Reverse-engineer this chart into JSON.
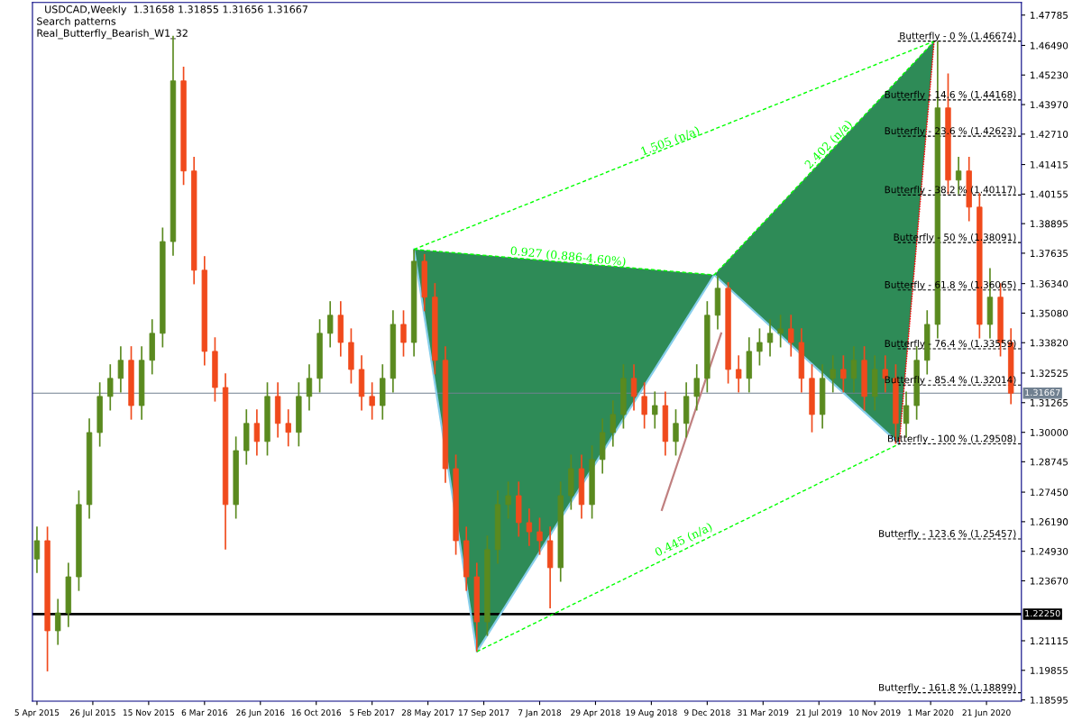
{
  "chart_data": {
    "type": "candlestick",
    "title": "USDCAD,Weekly  1.31658 1.31855 1.31656 1.31667",
    "annotations": [
      "Search patterns",
      "Real_Butterfly_Bearish_W1_32",
      {
        "text": "1.505 (n/a)",
        "x": "2018-09-30",
        "y": 1.4217
      },
      {
        "text": "2.402 (n/a)",
        "x": "2019-08-18",
        "y": 1.4209
      },
      {
        "text": "0.927 (0.886-4.60%)",
        "x": "2018-03-04",
        "y": 1.3724
      },
      {
        "text": "0.445 (n/a)",
        "x": "2018-10-28",
        "y": 1.2519
      }
    ],
    "x": [
      "2015-04-05",
      "2015-04-26",
      "2015-05-17",
      "2015-06-07",
      "2015-06-28",
      "2015-07-19",
      "2015-08-09",
      "2015-08-30",
      "2015-09-20",
      "2015-10-11",
      "2015-11-01",
      "2015-11-22",
      "2015-12-13",
      "2016-01-03",
      "2016-01-24",
      "2016-02-14",
      "2016-03-06",
      "2016-03-27",
      "2016-04-17",
      "2016-05-08",
      "2016-05-29",
      "2016-06-19",
      "2016-07-10",
      "2016-07-31",
      "2016-08-21",
      "2016-09-11",
      "2016-10-02",
      "2016-10-23",
      "2016-11-13",
      "2016-12-04",
      "2016-12-25",
      "2017-01-15",
      "2017-02-05",
      "2017-02-26",
      "2017-03-19",
      "2017-04-09",
      "2017-04-30",
      "2017-05-21",
      "2017-06-11",
      "2017-07-02",
      "2017-07-23",
      "2017-08-13",
      "2017-09-03",
      "2017-09-24",
      "2017-10-15",
      "2017-11-05",
      "2017-11-26",
      "2017-12-17",
      "2018-01-07",
      "2018-01-28",
      "2018-02-18",
      "2018-03-11",
      "2018-04-01",
      "2018-04-22",
      "2018-05-13",
      "2018-06-03",
      "2018-06-24",
      "2018-07-15",
      "2018-08-05",
      "2018-08-26",
      "2018-09-16",
      "2018-10-07",
      "2018-10-28",
      "2018-11-18",
      "2018-12-09",
      "2018-12-30",
      "2019-01-20",
      "2019-02-10",
      "2019-03-03",
      "2019-03-24",
      "2019-04-14",
      "2019-05-05",
      "2019-05-26",
      "2019-06-16",
      "2019-07-07",
      "2019-07-28",
      "2019-08-18",
      "2019-09-08",
      "2019-09-29",
      "2019-10-20",
      "2019-11-10",
      "2019-12-01",
      "2019-12-22",
      "2020-01-12",
      "2020-02-02",
      "2020-02-23",
      "2020-03-15",
      "2020-04-05",
      "2020-04-26",
      "2020-05-17",
      "2020-06-07",
      "2020-06-28",
      "2020-07-19",
      "2020-08-09"
    ],
    "ohlc": [
      [
        1.246,
        1.2598,
        1.24,
        1.2538
      ],
      [
        1.2538,
        1.2598,
        1.1981,
        1.2154
      ],
      [
        1.2154,
        1.229,
        1.2094,
        1.223
      ],
      [
        1.223,
        1.2444,
        1.217,
        1.2384
      ],
      [
        1.2384,
        1.2752,
        1.2324,
        1.2692
      ],
      [
        1.2692,
        1.3059,
        1.2632,
        1.2999
      ],
      [
        1.2999,
        1.3213,
        1.2939,
        1.3153
      ],
      [
        1.3153,
        1.329,
        1.3093,
        1.323
      ],
      [
        1.323,
        1.3367,
        1.317,
        1.3307
      ],
      [
        1.3307,
        1.3367,
        1.3054,
        1.3114
      ],
      [
        1.3114,
        1.3367,
        1.3054,
        1.3307
      ],
      [
        1.3307,
        1.3482,
        1.3247,
        1.3422
      ],
      [
        1.3422,
        1.3873,
        1.3362,
        1.3813
      ],
      [
        1.3813,
        1.469,
        1.3753,
        1.4498
      ],
      [
        1.4498,
        1.4558,
        1.4054,
        1.4114
      ],
      [
        1.4114,
        1.4174,
        1.3631,
        1.3691
      ],
      [
        1.3691,
        1.3751,
        1.3285,
        1.3345
      ],
      [
        1.3345,
        1.3405,
        1.3131,
        1.3191
      ],
      [
        1.3191,
        1.3251,
        1.25,
        1.2692
      ],
      [
        1.2692,
        1.2982,
        1.2632,
        1.2922
      ],
      [
        1.2922,
        1.3098,
        1.2862,
        1.3038
      ],
      [
        1.3038,
        1.3098,
        1.2901,
        1.2961
      ],
      [
        1.2961,
        1.3213,
        1.2901,
        1.3153
      ],
      [
        1.3153,
        1.3213,
        1.2978,
        1.3038
      ],
      [
        1.3038,
        1.3098,
        1.294,
        1.3
      ],
      [
        1.3,
        1.3213,
        1.294,
        1.3153
      ],
      [
        1.3153,
        1.329,
        1.3093,
        1.323
      ],
      [
        1.323,
        1.3482,
        1.317,
        1.3422
      ],
      [
        1.3422,
        1.3559,
        1.3362,
        1.3499
      ],
      [
        1.3499,
        1.3559,
        1.3323,
        1.3383
      ],
      [
        1.3383,
        1.3443,
        1.3208,
        1.3268
      ],
      [
        1.3268,
        1.3328,
        1.3093,
        1.3153
      ],
      [
        1.3153,
        1.3213,
        1.3054,
        1.3114
      ],
      [
        1.3114,
        1.329,
        1.3054,
        1.323
      ],
      [
        1.323,
        1.352,
        1.317,
        1.346
      ],
      [
        1.346,
        1.352,
        1.3323,
        1.3383
      ],
      [
        1.3383,
        1.378,
        1.3323,
        1.3729
      ],
      [
        1.3729,
        1.376,
        1.3516,
        1.3576
      ],
      [
        1.3576,
        1.3636,
        1.3247,
        1.3307
      ],
      [
        1.3307,
        1.3367,
        1.2785,
        1.2845
      ],
      [
        1.2845,
        1.2905,
        1.2478,
        1.2538
      ],
      [
        1.2538,
        1.2598,
        1.2324,
        1.2384
      ],
      [
        1.2384,
        1.2444,
        1.2065,
        1.2192
      ],
      [
        1.2192,
        1.256,
        1.2132,
        1.25
      ],
      [
        1.25,
        1.2752,
        1.244,
        1.2692
      ],
      [
        1.2692,
        1.279,
        1.2632,
        1.273
      ],
      [
        1.273,
        1.279,
        1.2555,
        1.2615
      ],
      [
        1.2615,
        1.2675,
        1.2516,
        1.2576
      ],
      [
        1.2576,
        1.2636,
        1.2478,
        1.2538
      ],
      [
        1.2538,
        1.2598,
        1.225,
        1.2423
      ],
      [
        1.2423,
        1.279,
        1.2363,
        1.273
      ],
      [
        1.273,
        1.2905,
        1.267,
        1.2845
      ],
      [
        1.2845,
        1.2905,
        1.2632,
        1.2692
      ],
      [
        1.2692,
        1.2944,
        1.2632,
        1.2884
      ],
      [
        1.2884,
        1.3059,
        1.2824,
        1.2999
      ],
      [
        1.2999,
        1.3136,
        1.2939,
        1.3076
      ],
      [
        1.3076,
        1.329,
        1.3016,
        1.323
      ],
      [
        1.323,
        1.329,
        1.3093,
        1.3153
      ],
      [
        1.3153,
        1.3213,
        1.3016,
        1.3076
      ],
      [
        1.3076,
        1.3174,
        1.3016,
        1.3114
      ],
      [
        1.3114,
        1.3174,
        1.2901,
        1.2961
      ],
      [
        1.2961,
        1.3098,
        1.2901,
        1.3038
      ],
      [
        1.3038,
        1.3213,
        1.2978,
        1.3153
      ],
      [
        1.3153,
        1.329,
        1.3093,
        1.323
      ],
      [
        1.323,
        1.3559,
        1.317,
        1.3499
      ],
      [
        1.3499,
        1.3665,
        1.3439,
        1.3614
      ],
      [
        1.3614,
        1.364,
        1.3208,
        1.3268
      ],
      [
        1.3268,
        1.3328,
        1.317,
        1.323
      ],
      [
        1.323,
        1.3405,
        1.317,
        1.3345
      ],
      [
        1.3345,
        1.3443,
        1.3285,
        1.3383
      ],
      [
        1.3383,
        1.3482,
        1.3323,
        1.3422
      ],
      [
        1.3422,
        1.3501,
        1.3362,
        1.3441
      ],
      [
        1.3441,
        1.3501,
        1.3323,
        1.3383
      ],
      [
        1.3383,
        1.3443,
        1.317,
        1.323
      ],
      [
        1.323,
        1.329,
        1.3,
        1.3076
      ],
      [
        1.3076,
        1.329,
        1.3016,
        1.323
      ],
      [
        1.323,
        1.3328,
        1.317,
        1.3268
      ],
      [
        1.3268,
        1.3328,
        1.317,
        1.323
      ],
      [
        1.323,
        1.3367,
        1.317,
        1.3307
      ],
      [
        1.3307,
        1.3367,
        1.3093,
        1.3153
      ],
      [
        1.3153,
        1.3328,
        1.3093,
        1.3268
      ],
      [
        1.3268,
        1.3328,
        1.317,
        1.323
      ],
      [
        1.323,
        1.329,
        1.2951,
        1.3038
      ],
      [
        1.3038,
        1.3174,
        1.2978,
        1.3114
      ],
      [
        1.3114,
        1.3367,
        1.3054,
        1.3307
      ],
      [
        1.3307,
        1.352,
        1.3247,
        1.346
      ],
      [
        1.346,
        1.4667,
        1.34,
        1.4383
      ],
      [
        1.4383,
        1.453,
        1.4015,
        1.4075
      ],
      [
        1.4075,
        1.4174,
        1.4015,
        1.4114
      ],
      [
        1.4114,
        1.4174,
        1.39,
        1.396
      ],
      [
        1.396,
        1.402,
        1.34,
        1.346
      ],
      [
        1.346,
        1.37,
        1.34,
        1.3576
      ],
      [
        1.3576,
        1.3636,
        1.3323,
        1.3383
      ],
      [
        1.3383,
        1.3443,
        1.312,
        1.3167
      ]
    ],
    "colors": [
      "#5a8a1f",
      "#f04a1c",
      "#5a8a1f",
      "#5a8a1f",
      "#5a8a1f",
      "#5a8a1f",
      "#5a8a1f",
      "#5a8a1f",
      "#5a8a1f",
      "#f04a1c",
      "#5a8a1f",
      "#5a8a1f",
      "#5a8a1f",
      "#5a8a1f",
      "#f04a1c",
      "#f04a1c",
      "#f04a1c",
      "#f04a1c",
      "#f04a1c",
      "#5a8a1f",
      "#5a8a1f",
      "#f04a1c",
      "#5a8a1f",
      "#f04a1c",
      "#f04a1c",
      "#5a8a1f",
      "#5a8a1f",
      "#5a8a1f",
      "#5a8a1f",
      "#f04a1c",
      "#f04a1c",
      "#f04a1c",
      "#f04a1c",
      "#5a8a1f",
      "#5a8a1f",
      "#f04a1c",
      "#5a8a1f",
      "#f04a1c",
      "#f04a1c",
      "#f04a1c",
      "#f04a1c",
      "#f04a1c",
      "#f04a1c",
      "#5a8a1f",
      "#5a8a1f",
      "#5a8a1f",
      "#f04a1c",
      "#f04a1c",
      "#f04a1c",
      "#f04a1c",
      "#5a8a1f",
      "#5a8a1f",
      "#f04a1c",
      "#5a8a1f",
      "#5a8a1f",
      "#5a8a1f",
      "#5a8a1f",
      "#f04a1c",
      "#f04a1c",
      "#5a8a1f",
      "#f04a1c",
      "#5a8a1f",
      "#5a8a1f",
      "#5a8a1f",
      "#5a8a1f",
      "#5a8a1f",
      "#f04a1c",
      "#f04a1c",
      "#5a8a1f",
      "#5a8a1f",
      "#5a8a1f",
      "#5a8a1f",
      "#f04a1c",
      "#f04a1c",
      "#f04a1c",
      "#5a8a1f",
      "#5a8a1f",
      "#f04a1c",
      "#5a8a1f",
      "#f04a1c",
      "#5a8a1f",
      "#f04a1c",
      "#f04a1c",
      "#5a8a1f",
      "#5a8a1f",
      "#5a8a1f",
      "#5a8a1f",
      "#f04a1c",
      "#5a8a1f",
      "#f04a1c",
      "#f04a1c",
      "#5a8a1f",
      "#f04a1c",
      "#f04a1c"
    ],
    "series": [
      {
        "type": "area",
        "color": "#2e8b57",
        "x": [
          "2017-04-30",
          "2017-09-03",
          "2018-12-23"
        ],
        "values": [
          1.378,
          1.2065,
          1.3671
        ]
      },
      {
        "type": "area",
        "color": "#2e8b57",
        "x": [
          "2018-12-23",
          "2019-12-29",
          "2020-03-08"
        ],
        "values": [
          1.3671,
          1.2951,
          1.4667
        ]
      },
      {
        "type": "line",
        "color": "#87ceeb",
        "line_style": "solid",
        "x": [
          "2017-04-30",
          "2017-09-03",
          "2018-12-23",
          "2019-12-29"
        ],
        "values": [
          1.378,
          1.2065,
          1.3671,
          1.2951
        ]
      },
      {
        "type": "line",
        "color": "#ff0000",
        "line_style": "dotted",
        "x": [
          "2020-03-08",
          "2019-12-29"
        ],
        "values": [
          1.4667,
          1.2951
        ]
      },
      {
        "type": "line",
        "color": "#00ff00",
        "line_style": "dashed",
        "x": [
          "2017-04-30",
          "2018-12-23",
          "2020-03-08"
        ],
        "values": [
          1.378,
          1.3671,
          1.4667
        ]
      },
      {
        "type": "line",
        "color": "#00ff00",
        "line_style": "dashed",
        "x": [
          "2017-04-30",
          "2020-03-08"
        ],
        "values": [
          1.378,
          1.4667
        ]
      },
      {
        "type": "line",
        "color": "#00ff00",
        "line_style": "dashed",
        "x": [
          "2017-09-03",
          "2019-12-29"
        ],
        "values": [
          1.2065,
          1.2951
        ]
      },
      {
        "type": "line",
        "color": "#c08080",
        "line_style": "solid",
        "x": [
          "2018-09-09",
          "2019-01-06"
        ],
        "values": [
          1.2669,
          1.3422
        ]
      }
    ],
    "ref_lines": [
      {
        "axis": "y",
        "value": 1.46674,
        "label": "Butterfly - 0 % (1.46674)",
        "color": "#000000",
        "line_style": "dashed"
      },
      {
        "axis": "y",
        "value": 1.44168,
        "label": "Butterfly - 14.6 % (1.44168)",
        "color": "#000000",
        "line_style": "dashed"
      },
      {
        "axis": "y",
        "value": 1.42623,
        "label": "Butterfly - 23.6 % (1.42623)",
        "color": "#000000",
        "line_style": "dashed"
      },
      {
        "axis": "y",
        "value": 1.40117,
        "label": "Butterfly - 38.2 % (1.40117)",
        "color": "#000000",
        "line_style": "dashed"
      },
      {
        "axis": "y",
        "value": 1.38091,
        "label": "Butterfly - 50 % (1.38091)",
        "color": "#000000",
        "line_style": "dashed"
      },
      {
        "axis": "y",
        "value": 1.36065,
        "label": "Butterfly - 61.8 % (1.36065)",
        "color": "#000000",
        "line_style": "dashed"
      },
      {
        "axis": "y",
        "value": 1.33559,
        "label": "Butterfly - 76.4 % (1.33559)",
        "color": "#000000",
        "line_style": "dashed"
      },
      {
        "axis": "y",
        "value": 1.32014,
        "label": "Butterfly - 85.4 % (1.32014)",
        "color": "#000000",
        "line_style": "dashed"
      },
      {
        "axis": "y",
        "value": 1.29508,
        "label": "Butterfly - 100 % (1.29508)",
        "color": "#000000",
        "line_style": "dashed"
      },
      {
        "axis": "y",
        "value": 1.25457,
        "label": "Butterfly - 123.6 % (1.25457)",
        "color": "#000000",
        "line_style": "dashed"
      },
      {
        "axis": "y",
        "value": 1.18899,
        "label": "Butterfly - 161.8 % (1.18899)",
        "color": "#000000",
        "line_style": "dashed"
      },
      {
        "axis": "y",
        "value": 1.31667,
        "label": "1.31667",
        "color": "#708090",
        "line_style": "solid"
      },
      {
        "axis": "y",
        "value": 1.2225,
        "label": "1.22250",
        "color": "#000000",
        "line_style": "solid"
      }
    ],
    "xlim": [
      "2015-03-27",
      "2020-08-30"
    ],
    "xticks": [
      {
        "value": "2015-04-05",
        "label": "5 Apr 2015"
      },
      {
        "value": "2015-07-26",
        "label": "26 Jul 2015"
      },
      {
        "value": "2015-11-15",
        "label": "15 Nov 2015"
      },
      {
        "value": "2016-03-06",
        "label": "6 Mar 2016"
      },
      {
        "value": "2016-06-26",
        "label": "26 Jun 2016"
      },
      {
        "value": "2016-10-16",
        "label": "16 Oct 2016"
      },
      {
        "value": "2017-02-05",
        "label": "5 Feb 2017"
      },
      {
        "value": "2017-05-28",
        "label": "28 May 2017"
      },
      {
        "value": "2017-09-17",
        "label": "17 Sep 2017"
      },
      {
        "value": "2018-01-07",
        "label": "7 Jan 2018"
      },
      {
        "value": "2018-04-29",
        "label": "29 Apr 2018"
      },
      {
        "value": "2018-08-19",
        "label": "19 Aug 2018"
      },
      {
        "value": "2018-12-09",
        "label": "9 Dec 2018"
      },
      {
        "value": "2019-03-31",
        "label": "31 Mar 2019"
      },
      {
        "value": "2019-07-21",
        "label": "21 Jul 2019"
      },
      {
        "value": "2019-11-10",
        "label": "10 Nov 2019"
      },
      {
        "value": "2020-03-01",
        "label": "1 Mar 2020"
      },
      {
        "value": "2020-06-21",
        "label": "21 Jun 2020"
      }
    ],
    "ylim": [
      1.1854,
      1.4832
    ],
    "yticks": [
      {
        "value": 1.47785,
        "label": "1.47785"
      },
      {
        "value": 1.4649,
        "label": "1.46490"
      },
      {
        "value": 1.4523,
        "label": "1.45230"
      },
      {
        "value": 1.4397,
        "label": "1.43970"
      },
      {
        "value": 1.4271,
        "label": "1.42710"
      },
      {
        "value": 1.41415,
        "label": "1.41415"
      },
      {
        "value": 1.40155,
        "label": "1.40155"
      },
      {
        "value": 1.38895,
        "label": "1.38895"
      },
      {
        "value": 1.37635,
        "label": "1.37635"
      },
      {
        "value": 1.3634,
        "label": "1.36340"
      },
      {
        "value": 1.3508,
        "label": "1.35080"
      },
      {
        "value": 1.3382,
        "label": "1.33820"
      },
      {
        "value": 1.32525,
        "label": "1.32525"
      },
      {
        "value": 1.31265,
        "label": "1.31265"
      },
      {
        "value": 1.3,
        "label": "1.30000"
      },
      {
        "value": 1.28745,
        "label": "1.28745"
      },
      {
        "value": 1.2745,
        "label": "1.27450"
      },
      {
        "value": 1.2619,
        "label": "1.26190"
      },
      {
        "value": 1.2493,
        "label": "1.24930"
      },
      {
        "value": 1.2367,
        "label": "1.23670"
      },
      {
        "value": 1.21115,
        "label": "1.21115"
      },
      {
        "value": 1.19855,
        "label": "1.19855"
      },
      {
        "value": 1.18595,
        "label": "1.18595"
      }
    ],
    "grid": false,
    "legend": false
  }
}
